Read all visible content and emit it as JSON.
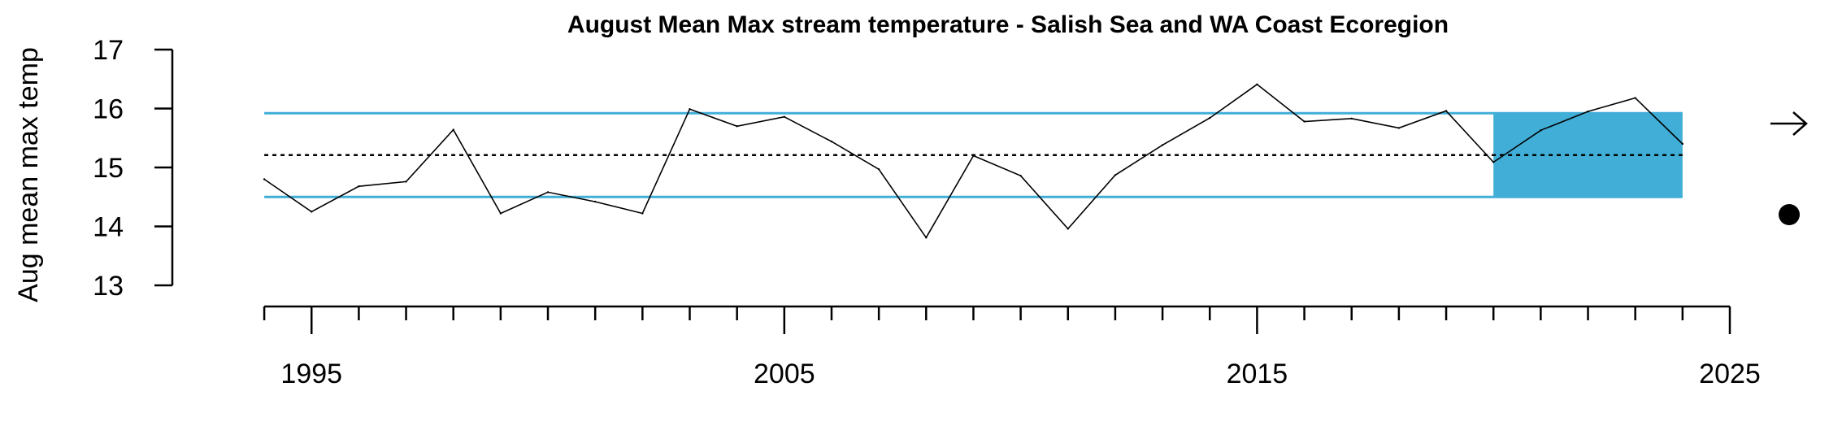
{
  "chart_data": {
    "type": "line",
    "title": "August Mean Max stream temperature - Salish Sea and WA Coast Ecoregion",
    "ylabel": "Aug mean max temp",
    "xlabel": "",
    "xlim": [
      1993.5,
      2025
    ],
    "ylim": [
      13,
      17
    ],
    "yticks": [
      13,
      14,
      15,
      16,
      17
    ],
    "xticks_major": [
      1995,
      2005,
      2015,
      2025
    ],
    "xticks_minor_step": 1,
    "series": [
      {
        "x": [
          1994,
          1995,
          1996,
          1997,
          1998,
          1999,
          2000,
          2001,
          2002,
          2003,
          2004,
          2005,
          2006,
          2007,
          2008,
          2009,
          2010,
          2011,
          2012,
          2013,
          2014,
          2015,
          2016,
          2017,
          2018,
          2019,
          2020,
          2021,
          2022,
          2023,
          2024
        ],
        "values": [
          14.8,
          14.25,
          14.68,
          14.76,
          15.64,
          14.22,
          14.58,
          14.42,
          14.22,
          15.99,
          15.7,
          15.86,
          15.44,
          14.97,
          13.81,
          15.2,
          14.86,
          13.96,
          14.87,
          15.38,
          15.84,
          16.41,
          15.78,
          15.83,
          15.67,
          15.96,
          15.09,
          15.63,
          15.95,
          16.18,
          15.4
        ]
      }
    ],
    "mean_line": 15.21,
    "sd_band": {
      "upper": 15.92,
      "lower": 14.5
    },
    "recent_window": {
      "x_start": 2020,
      "x_end": 2024
    },
    "colors": {
      "band": "#41aed7",
      "line": "#000000",
      "mean": "#000000"
    },
    "indicators": {
      "trend": "arrow-right",
      "mean_status": "below"
    }
  }
}
